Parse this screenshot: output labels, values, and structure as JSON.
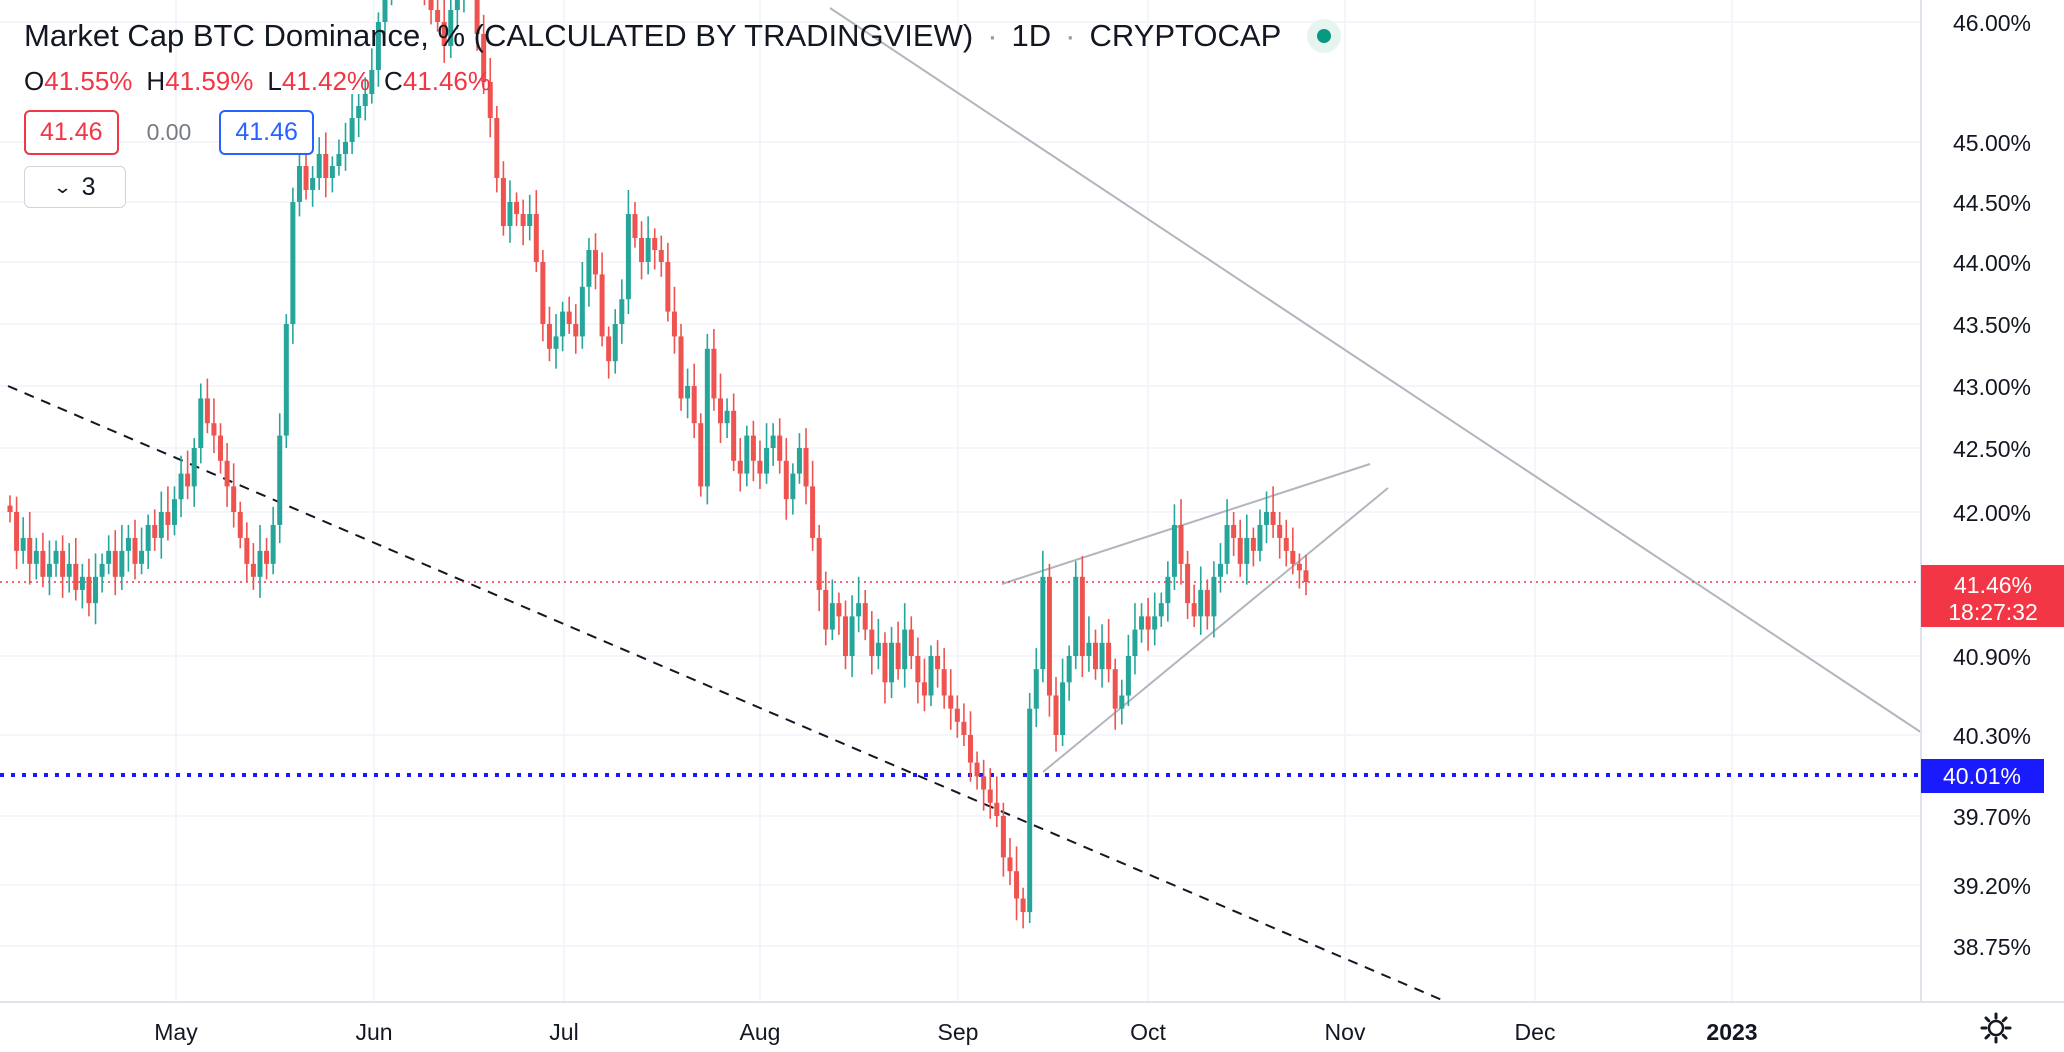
{
  "legend": {
    "title": "Market Cap BTC Dominance, % (CALCULATED BY TRADINGVIEW)",
    "interval": "1D",
    "exchange": "CRYPTOCAP",
    "ohlc": {
      "o_label": "O",
      "o_value": "41.55%",
      "h_label": "H",
      "h_value": "41.59%",
      "l_label": "L",
      "l_value": "41.42%",
      "c_label": "C",
      "c_value": "41.46%"
    },
    "sell_price": "41.46",
    "spread": "0.00",
    "buy_price": "41.46",
    "indicators_count": "3"
  },
  "colors": {
    "up": "#26a69a",
    "down": "#ef5350",
    "last_price": "#f23645",
    "blue_level": "#2962ff"
  },
  "chart_data": {
    "type": "candlestick",
    "y_axis_ticks": [
      "46.00%",
      "45.00%",
      "44.50%",
      "44.00%",
      "43.50%",
      "43.00%",
      "42.50%",
      "42.00%",
      "40.90%",
      "40.30%",
      "39.70%",
      "39.20%",
      "38.75%"
    ],
    "x_axis_ticks": [
      "May",
      "Jun",
      "Jul",
      "Aug",
      "Sep",
      "Oct",
      "Nov",
      "Dec",
      "2023"
    ],
    "last_price_label": "41.46%",
    "countdown_label": "18:27:32",
    "horizontal_level_label": "40.01%",
    "last_price": 41.46,
    "horizontal_level": 40.01,
    "series": [
      {
        "name": "",
        "close": [
          42.0,
          41.7,
          41.8,
          41.6,
          41.7,
          41.5,
          41.6,
          41.7,
          41.5,
          41.6,
          41.4,
          41.5,
          41.3,
          41.5,
          41.6,
          41.7,
          41.5,
          41.7,
          41.8,
          41.6,
          41.7,
          41.9,
          41.8,
          42.0,
          41.9,
          42.1,
          42.3,
          42.2,
          42.5,
          42.9,
          42.7,
          42.6,
          42.4,
          42.2,
          42.0,
          41.8,
          41.6,
          41.5,
          41.7,
          41.6,
          41.9,
          42.6,
          43.5,
          44.5,
          44.8,
          44.6,
          44.7,
          44.9,
          44.7,
          44.8,
          44.9,
          45.0,
          45.2,
          45.3,
          45.4,
          45.6,
          46.0,
          46.3,
          46.4,
          46.5,
          46.4,
          46.6,
          46.4,
          46.3,
          46.1,
          46.0,
          45.8,
          46.1,
          46.2,
          46.3,
          46.4,
          45.9,
          45.5,
          45.2,
          44.7,
          44.3,
          44.5,
          44.4,
          44.3,
          44.4,
          44.0,
          43.5,
          43.3,
          43.4,
          43.6,
          43.5,
          43.4,
          43.8,
          44.1,
          43.9,
          43.4,
          43.2,
          43.5,
          43.7,
          44.4,
          44.2,
          44.0,
          44.2,
          44.1,
          44.0,
          43.6,
          43.4,
          42.9,
          43.0,
          42.7,
          42.2,
          43.3,
          42.9,
          42.7,
          42.8,
          42.4,
          42.3,
          42.6,
          42.4,
          42.3,
          42.5,
          42.6,
          42.4,
          42.1,
          42.3,
          42.5,
          42.2,
          41.8,
          41.4,
          41.1,
          41.3,
          41.2,
          40.9,
          41.2,
          41.3,
          41.1,
          40.9,
          41.0,
          40.7,
          41.0,
          40.8,
          41.1,
          40.9,
          40.7,
          40.6,
          40.9,
          40.8,
          40.6,
          40.5,
          40.4,
          40.3,
          40.1,
          40.0,
          39.9,
          39.8,
          39.7,
          39.4,
          39.3,
          39.1,
          39.0,
          40.5,
          40.8,
          41.5,
          40.6,
          40.3,
          40.7,
          40.9,
          41.5,
          40.9,
          41.0,
          40.8,
          41.0,
          40.8,
          40.5,
          40.6,
          40.9,
          41.1,
          41.2,
          41.1,
          41.2,
          41.3,
          41.5,
          41.9,
          41.6,
          41.3,
          41.2,
          41.4,
          41.2,
          41.5,
          41.6,
          41.9,
          41.8,
          41.6,
          41.8,
          41.7,
          41.9,
          42.0,
          41.9,
          41.8,
          41.7,
          41.6,
          41.55,
          41.46
        ]
      }
    ]
  }
}
